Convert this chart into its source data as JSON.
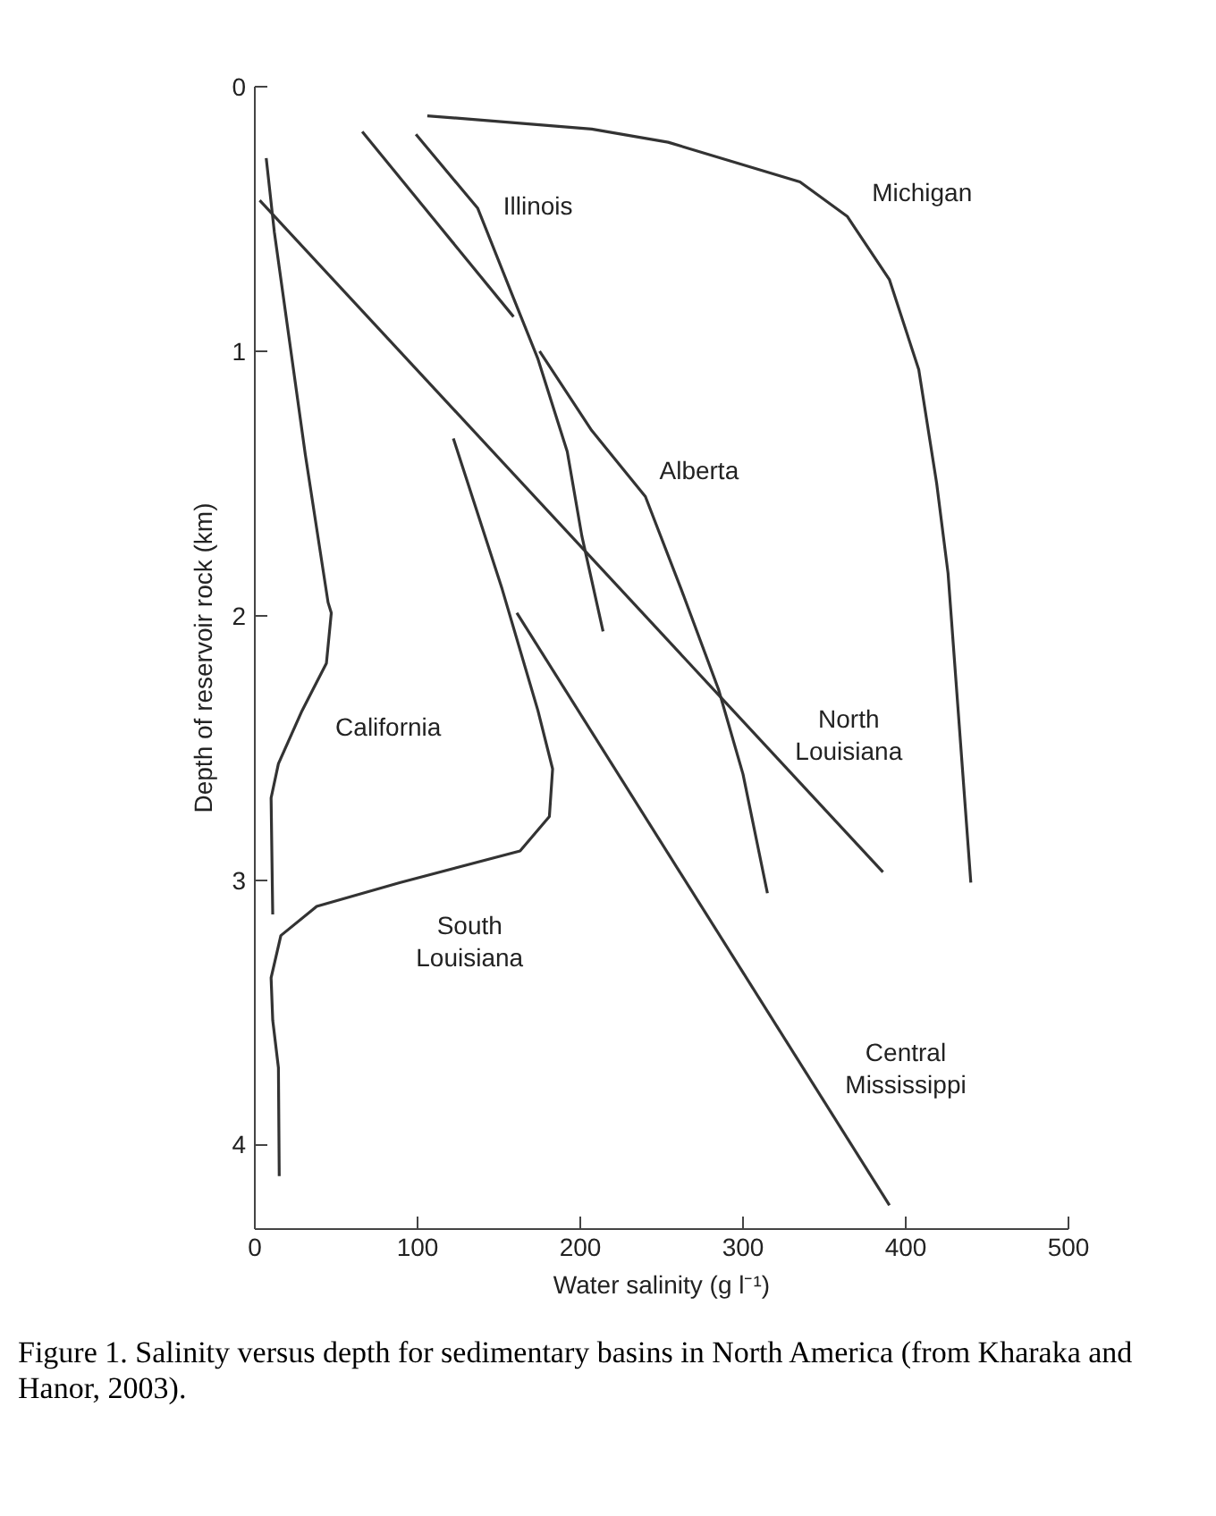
{
  "chart_data": {
    "type": "line",
    "xlabel": "Water salinity (g l⁻¹)",
    "ylabel": "Depth of reservoir rock (km)",
    "xlim": [
      0,
      500
    ],
    "ylim": [
      4.32,
      0
    ],
    "xticks": [
      0,
      100,
      200,
      300,
      400,
      500
    ],
    "yticks": [
      0,
      1,
      2,
      3,
      4
    ],
    "grid": false,
    "legend": false,
    "marker": "none",
    "line_style": "solid",
    "series": [
      {
        "name": "Michigan",
        "color": "#333333",
        "x": [
          106,
          207,
          254,
          335,
          364,
          390,
          408,
          419,
          426,
          440
        ],
        "values": [
          0.11,
          0.16,
          0.21,
          0.36,
          0.49,
          0.73,
          1.07,
          1.5,
          1.84,
          3.01
        ]
      },
      {
        "name": "Illinois",
        "color": "#333333",
        "x": [
          99,
          137,
          159,
          174,
          192,
          201,
          214
        ],
        "values": [
          0.18,
          0.46,
          0.8,
          1.03,
          1.38,
          1.7,
          2.06
        ]
      },
      {
        "color": "#333333",
        "x": [
          66,
          159
        ],
        "values": [
          0.17,
          0.87
        ]
      },
      {
        "name": "Alberta",
        "color": "#333333",
        "x": [
          175,
          207,
          240,
          262,
          285,
          300,
          315
        ],
        "values": [
          1.0,
          1.3,
          1.55,
          1.9,
          2.28,
          2.6,
          3.05
        ]
      },
      {
        "name": "North Louisiana",
        "color": "#333333",
        "x": [
          3,
          386
        ],
        "values": [
          0.43,
          2.97
        ]
      },
      {
        "name": "California",
        "color": "#333333",
        "x": [
          7,
          12,
          31,
          45,
          47,
          44,
          29,
          14.5,
          10,
          11
        ],
        "values": [
          0.27,
          0.55,
          1.39,
          1.95,
          1.99,
          2.18,
          2.36,
          2.56,
          2.69,
          3.13
        ]
      },
      {
        "name": "South Louisiana",
        "color": "#333333",
        "x": [
          122,
          152,
          174,
          183,
          181,
          163,
          89,
          38,
          16,
          10,
          11,
          14.5,
          15
        ],
        "values": [
          1.33,
          1.9,
          2.36,
          2.58,
          2.76,
          2.89,
          3.01,
          3.1,
          3.21,
          3.37,
          3.53,
          3.71,
          4.12
        ]
      },
      {
        "name": "Central Mississippi",
        "color": "#333333",
        "x": [
          161,
          390
        ],
        "values": [
          1.99,
          4.23
        ]
      }
    ],
    "annotations": [
      "Figure 1. Salinity versus depth for sedimentary basins in North America (from Kharaka and Hanor, 2003)."
    ]
  }
}
